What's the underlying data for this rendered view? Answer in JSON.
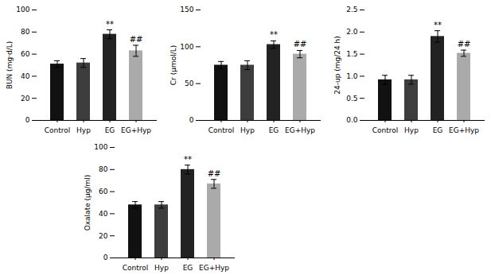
{
  "chart_data": [
    {
      "type": "bar",
      "ylabel": "BUN (mg·d/L)",
      "categories": [
        "Control",
        "Hyp",
        "EG",
        "EG+Hyp"
      ],
      "values": [
        51,
        52,
        78,
        63
      ],
      "errors": [
        3,
        4,
        4,
        5
      ],
      "annotations": [
        null,
        null,
        "**",
        "##"
      ],
      "colors": [
        "#111111",
        "#3d3d3d",
        "#222222",
        "#aaaaaa"
      ],
      "ylim": [
        0,
        100
      ],
      "yticks": [
        0,
        20,
        40,
        60,
        80,
        100
      ],
      "grid": false
    },
    {
      "type": "bar",
      "ylabel": "Cr (μmol/L)",
      "categories": [
        "Control",
        "Hyp",
        "EG",
        "EG+Hyp"
      ],
      "values": [
        75,
        75,
        103,
        90
      ],
      "errors": [
        5,
        6,
        5,
        5
      ],
      "annotations": [
        null,
        null,
        "**",
        "##"
      ],
      "colors": [
        "#111111",
        "#3d3d3d",
        "#222222",
        "#aaaaaa"
      ],
      "ylim": [
        0,
        150
      ],
      "yticks": [
        0,
        50,
        100,
        150
      ],
      "grid": false
    },
    {
      "type": "bar",
      "ylabel": "24-up (mg/24 h)",
      "categories": [
        "Control",
        "Hyp",
        "EG",
        "EG+Hyp"
      ],
      "values": [
        0.92,
        0.92,
        1.9,
        1.52
      ],
      "errors": [
        0.1,
        0.1,
        0.13,
        0.07
      ],
      "annotations": [
        null,
        null,
        "**",
        "##"
      ],
      "colors": [
        "#111111",
        "#3d3d3d",
        "#222222",
        "#aaaaaa"
      ],
      "ylim": [
        0.0,
        2.5
      ],
      "yticks": [
        {
          "value": 0,
          "label": "0.0"
        },
        0.5,
        {
          "value": 1,
          "label": "1.0"
        },
        1.5,
        {
          "value": 2,
          "label": "2.0"
        },
        2.5
      ],
      "grid": false
    },
    {
      "type": "bar",
      "ylabel": "Oxalate (μg/ml)",
      "categories": [
        "Control",
        "Hyp",
        "EG",
        "EG+Hyp"
      ],
      "values": [
        48,
        48,
        80,
        67
      ],
      "errors": [
        3,
        3,
        4,
        4
      ],
      "annotations": [
        null,
        null,
        "**",
        "##"
      ],
      "colors": [
        "#111111",
        "#3d3d3d",
        "#222222",
        "#aaaaaa"
      ],
      "ylim": [
        0,
        100
      ],
      "yticks": [
        0,
        20,
        40,
        60,
        80,
        100
      ],
      "grid": false
    }
  ]
}
